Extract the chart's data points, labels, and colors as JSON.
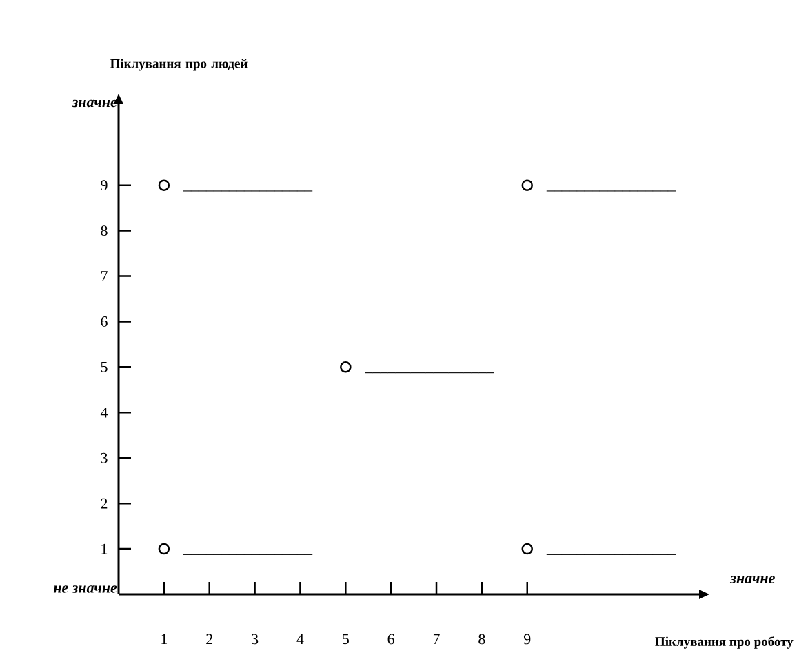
{
  "chart_data": {
    "type": "scatter",
    "xlabel": "Піклування про роботу",
    "ylabel": "Піклування про людей",
    "x": [
      1,
      9,
      5,
      1,
      9
    ],
    "values": [
      9,
      9,
      5,
      1,
      1
    ],
    "color": "#000000",
    "marker": "circle",
    "xlim": [
      0,
      12.8
    ],
    "ylim": [
      0,
      10.8
    ],
    "xticks": [
      1,
      2,
      3,
      4,
      5,
      6,
      7,
      8,
      9
    ],
    "yticks": [
      1,
      2,
      3,
      4,
      5,
      6,
      7,
      8,
      9
    ],
    "grid": false,
    "annotations": [
      "значне",
      "не значне",
      "значне",
      "_________________",
      "_________________",
      "_________________",
      "_________________",
      "_________________"
    ]
  }
}
